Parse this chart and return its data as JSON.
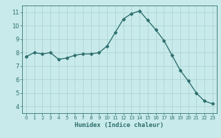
{
  "x": [
    0,
    1,
    2,
    3,
    4,
    5,
    6,
    7,
    8,
    9,
    10,
    11,
    12,
    13,
    14,
    15,
    16,
    17,
    18,
    19,
    20,
    21,
    22,
    23
  ],
  "y": [
    7.7,
    8.0,
    7.9,
    8.0,
    7.5,
    7.6,
    7.8,
    7.9,
    7.9,
    8.0,
    8.5,
    9.5,
    10.5,
    10.9,
    11.1,
    10.4,
    9.7,
    8.9,
    7.8,
    6.7,
    5.9,
    5.0,
    4.4,
    4.2
  ],
  "line_color": "#2e6e6e",
  "marker": "D",
  "marker_size": 2.5,
  "bg_color": "#c8eaea",
  "grid_color": "#a8d0d0",
  "tick_color": "#2e6e6e",
  "label_color": "#2e6e6e",
  "xlabel": "Humidex (Indice chaleur)",
  "ylim": [
    3.5,
    11.5
  ],
  "xlim": [
    -0.5,
    23.5
  ],
  "yticks": [
    4,
    5,
    6,
    7,
    8,
    9,
    10,
    11
  ],
  "xticks": [
    0,
    1,
    2,
    3,
    4,
    5,
    6,
    7,
    8,
    9,
    10,
    11,
    12,
    13,
    14,
    15,
    16,
    17,
    18,
    19,
    20,
    21,
    22,
    23
  ],
  "fig_width": 3.2,
  "fig_height": 2.0,
  "dpi": 100
}
